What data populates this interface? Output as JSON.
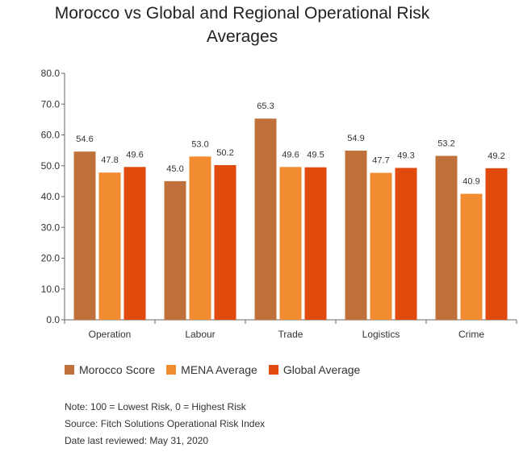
{
  "title_lines": [
    "Morocco vs Global and Regional Operational Risk",
    "Averages"
  ],
  "chart_data": {
    "type": "bar",
    "title": "Morocco vs Global and Regional Operational Risk Averages",
    "categories": [
      "Operation",
      "Labour",
      "Trade",
      "Logistics",
      "Crime"
    ],
    "series": [
      {
        "name": "Morocco Score",
        "color": "#c0703a",
        "values": [
          54.6,
          45.0,
          65.3,
          54.9,
          53.2
        ]
      },
      {
        "name": "MENA Average",
        "color": "#f28c30",
        "values": [
          47.8,
          53.0,
          49.6,
          47.7,
          40.9
        ]
      },
      {
        "name": "Global Average",
        "color": "#e04a0c",
        "values": [
          49.6,
          50.2,
          49.5,
          49.3,
          49.2
        ]
      }
    ],
    "ylim": [
      0,
      80
    ],
    "yticks": [
      "0.0",
      "10.0",
      "20.0",
      "30.0",
      "40.0",
      "50.0",
      "60.0",
      "70.0",
      "80.0"
    ],
    "xlabel": "",
    "ylabel": "",
    "legend": "bottom",
    "grid": false
  },
  "notes": {
    "note": "Note: 100 = Lowest Risk, 0 = Highest Risk",
    "source": "Source: Fitch Solutions Operational Risk Index",
    "reviewed": "Date last reviewed: May 31, 2020"
  }
}
